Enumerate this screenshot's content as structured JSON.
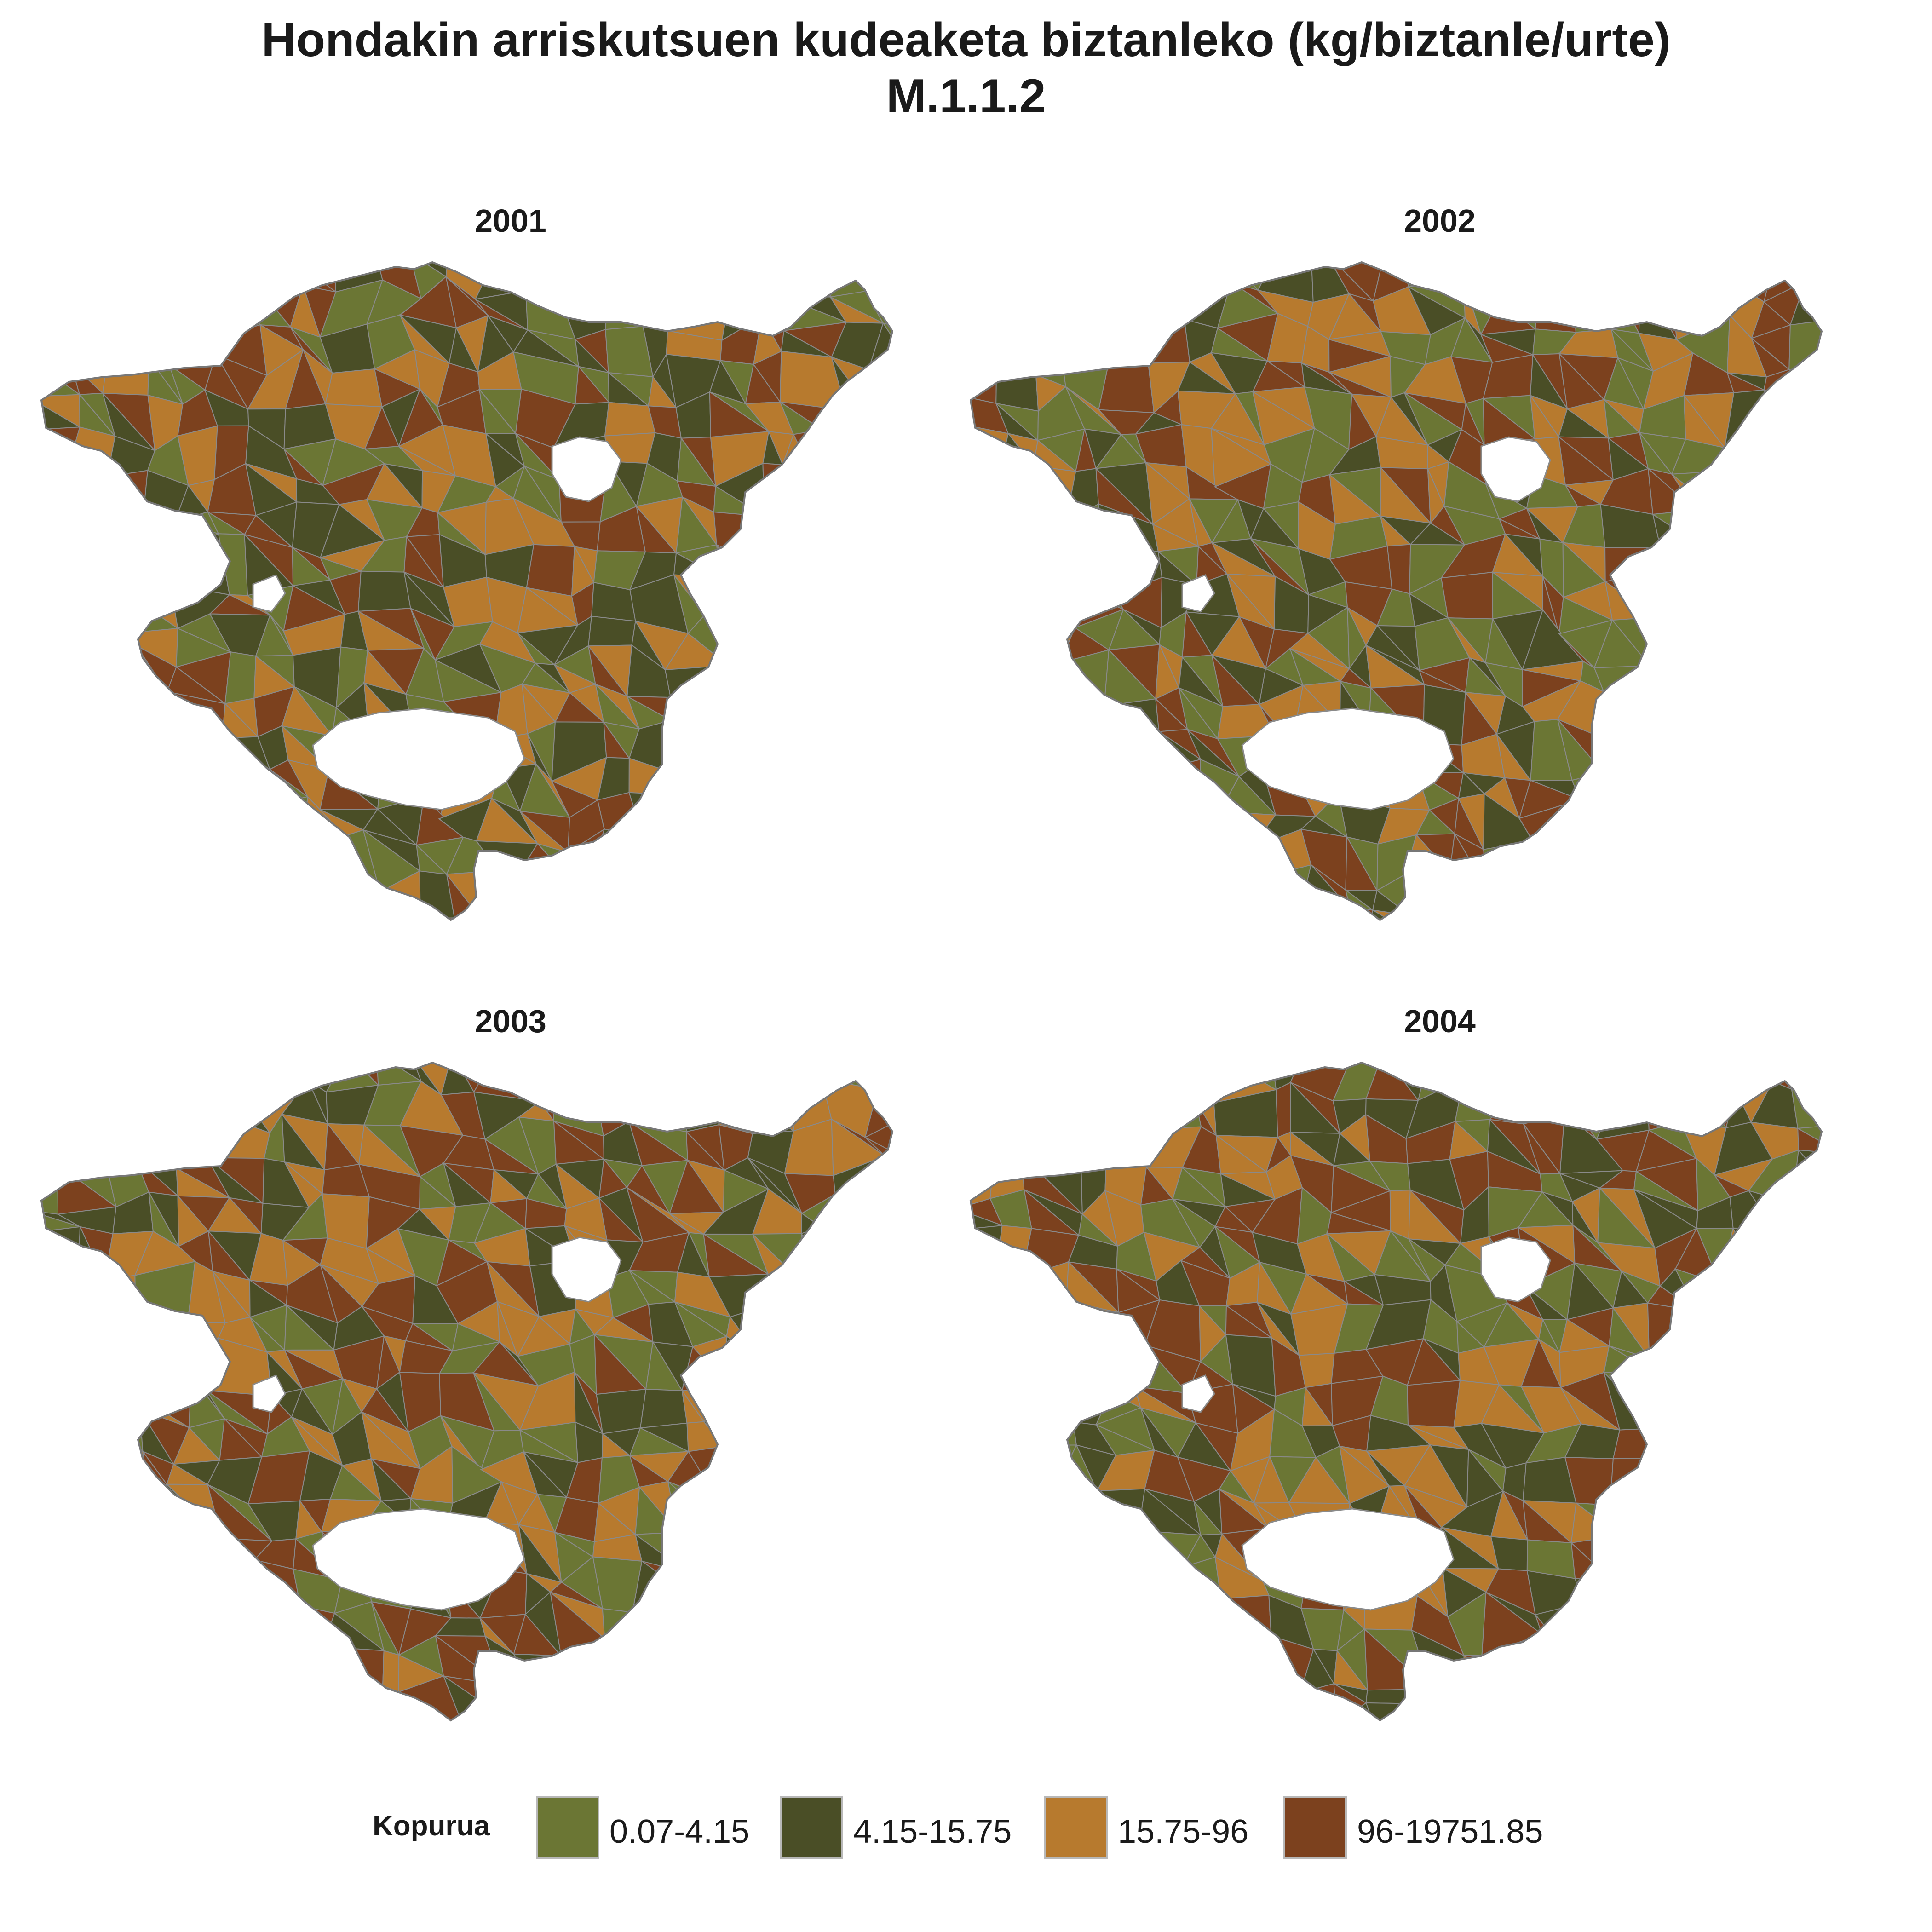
{
  "title_line1": "Hondakin arriskutsuen kudeaketa biztanleko (kg/biztanle/urte)",
  "title_line2": "M.1.1.2",
  "panels": [
    {
      "year": "2001"
    },
    {
      "year": "2002"
    },
    {
      "year": "2003"
    },
    {
      "year": "2004"
    }
  ],
  "legend": {
    "title": "Kopurua",
    "items": [
      {
        "label": "0.07-4.15",
        "color": "#6b7634"
      },
      {
        "label": "4.15-15.75",
        "color": "#4a4e26"
      },
      {
        "label": "15.75-96",
        "color": "#b77a2e"
      },
      {
        "label": "96-19751.85",
        "color": "#7c411e"
      }
    ]
  },
  "border_color": "#8a8a8a"
}
